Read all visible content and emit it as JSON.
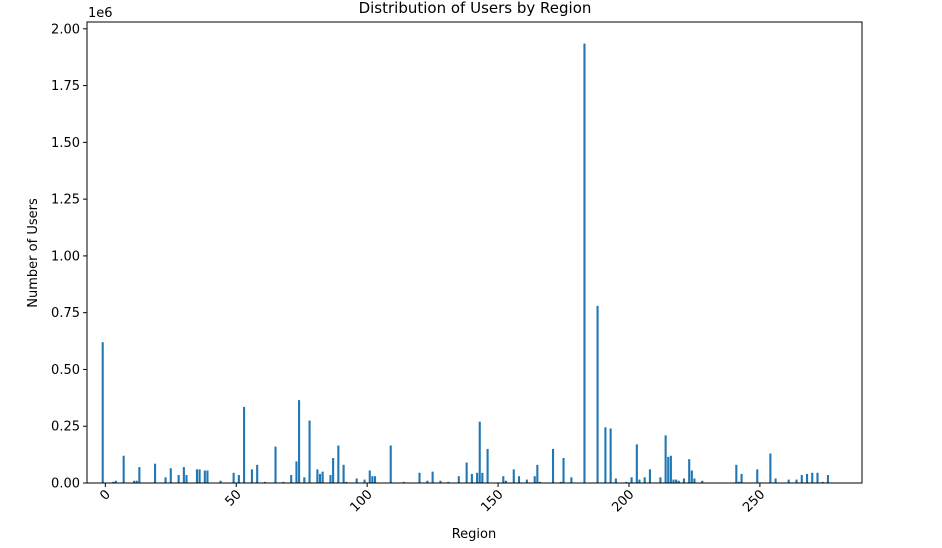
{
  "chart_data": {
    "type": "bar",
    "title": "Distribution of Users by Region",
    "xlabel": "Region",
    "ylabel": "Number of Users",
    "y_multiplier_label": "1e6",
    "xlim": [
      -7,
      289
    ],
    "ylim": [
      0,
      2.03
    ],
    "x_ticks": [
      0,
      50,
      100,
      150,
      200,
      250
    ],
    "x_tick_labels": [
      "0",
      "50",
      "100",
      "150",
      "200",
      "250"
    ],
    "y_ticks": [
      0,
      0.25,
      0.5,
      0.75,
      1.0,
      1.25,
      1.5,
      1.75,
      2.0
    ],
    "y_tick_labels": [
      "0.00",
      "0.25",
      "0.50",
      "0.75",
      "1.00",
      "1.25",
      "1.50",
      "1.75",
      "2.00"
    ],
    "bar_color": "#1f77b4",
    "x_tick_rotation": 45,
    "grid": false,
    "x": [
      -1,
      3,
      4,
      7,
      11,
      12,
      13,
      19,
      23,
      25,
      28,
      30,
      31,
      35,
      36,
      38,
      39,
      44,
      49,
      51,
      53,
      56,
      58,
      61,
      65,
      68,
      71,
      73,
      74,
      76,
      78,
      81,
      82,
      83,
      86,
      87,
      89,
      91,
      92,
      96,
      99,
      101,
      102,
      103,
      109,
      114,
      120,
      123,
      125,
      128,
      131,
      135,
      138,
      140,
      142,
      143,
      144,
      146,
      152,
      153,
      156,
      158,
      161,
      164,
      165,
      166,
      171,
      174,
      175,
      178,
      183,
      188,
      191,
      193,
      195,
      199,
      201,
      203,
      204,
      206,
      208,
      212,
      214,
      215,
      216,
      217,
      218,
      219,
      221,
      223,
      224,
      225,
      228,
      241,
      242,
      243,
      249,
      254,
      256,
      261,
      264,
      266,
      268,
      270,
      272,
      274,
      276
    ],
    "values": [
      0.62,
      0.005,
      0.01,
      0.12,
      0.01,
      0.01,
      0.07,
      0.085,
      0.025,
      0.065,
      0.035,
      0.07,
      0.035,
      0.06,
      0.06,
      0.055,
      0.055,
      0.01,
      0.045,
      0.035,
      0.335,
      0.06,
      0.08,
      0.005,
      0.16,
      0.005,
      0.035,
      0.095,
      0.365,
      0.025,
      0.275,
      0.06,
      0.04,
      0.05,
      0.035,
      0.11,
      0.165,
      0.08,
      0.005,
      0.02,
      0.015,
      0.055,
      0.03,
      0.03,
      0.165,
      0.005,
      0.045,
      0.01,
      0.05,
      0.01,
      0.005,
      0.03,
      0.09,
      0.04,
      0.045,
      0.27,
      0.045,
      0.15,
      0.03,
      0.01,
      0.06,
      0.03,
      0.015,
      0.03,
      0.08,
      0.005,
      0.15,
      0.005,
      0.11,
      0.025,
      1.935,
      0.78,
      0.245,
      0.24,
      0.02,
      0.005,
      0.025,
      0.17,
      0.015,
      0.025,
      0.06,
      0.025,
      0.21,
      0.115,
      0.12,
      0.015,
      0.015,
      0.01,
      0.02,
      0.105,
      0.055,
      0.02,
      0.01,
      0.08,
      0.005,
      0.04,
      0.06,
      0.13,
      0.02,
      0.015,
      0.015,
      0.035,
      0.04,
      0.045,
      0.045,
      0.005,
      0.035
    ]
  }
}
